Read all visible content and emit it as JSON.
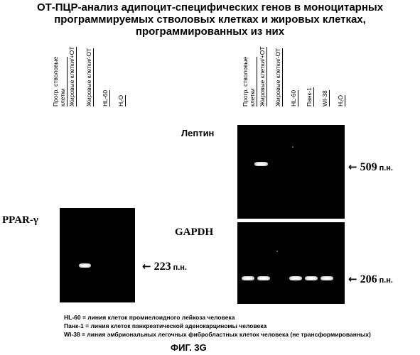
{
  "title": {
    "line1": "ОТ-ПЦР-анализ адипоцит-специфических генов в моноцитарных",
    "line2": "программируемых стволовых клетках и жировых клетках,",
    "line3": "программированных из них"
  },
  "left_panel": {
    "lanes": [
      {
        "line1": "Прогр. стволовые",
        "line2": "клетки"
      },
      {
        "line1": "Жировые клетки/+ОТ",
        "line2": ""
      },
      {
        "line1": "Жировые клетки/-ОТ",
        "line2": ""
      },
      {
        "line1": "HL-60",
        "line2": ""
      },
      {
        "line1": "H₂O",
        "line2": ""
      }
    ],
    "gene_label": "PPAR-γ",
    "size": {
      "arrow": "←",
      "num": "223",
      "unit": "п.н."
    }
  },
  "right_panel": {
    "lanes": [
      {
        "line1": "Прогр. стволовые",
        "line2": "клетки"
      },
      {
        "line1": "Жировые клетки/+ОТ",
        "line2": ""
      },
      {
        "line1": "Жировые клетки/-ОТ",
        "line2": ""
      },
      {
        "line1": "HL-60",
        "line2": ""
      },
      {
        "line1": "Панк-1",
        "line2": ""
      },
      {
        "line1": "WI-38",
        "line2": ""
      },
      {
        "line1": "H₂O",
        "line2": ""
      }
    ],
    "leptin": {
      "label": "Лептин",
      "size": {
        "arrow": "←",
        "num": "509",
        "unit": "п.н."
      }
    },
    "gapdh": {
      "label": "GAPDH",
      "size": {
        "arrow": "←",
        "num": "206",
        "unit": "п.н."
      }
    }
  },
  "legend": {
    "line1": "HL-60 = линия клеток промиелоидного лейкоза человека",
    "line2": "Панк-1 = линия клеток панкреатической аденокарциномы человека",
    "line3": "WI-38 = линия эмбриональных легочных фибробластных клеток человека (не трансформированных)"
  },
  "caption": "ФИГ. 3G"
}
